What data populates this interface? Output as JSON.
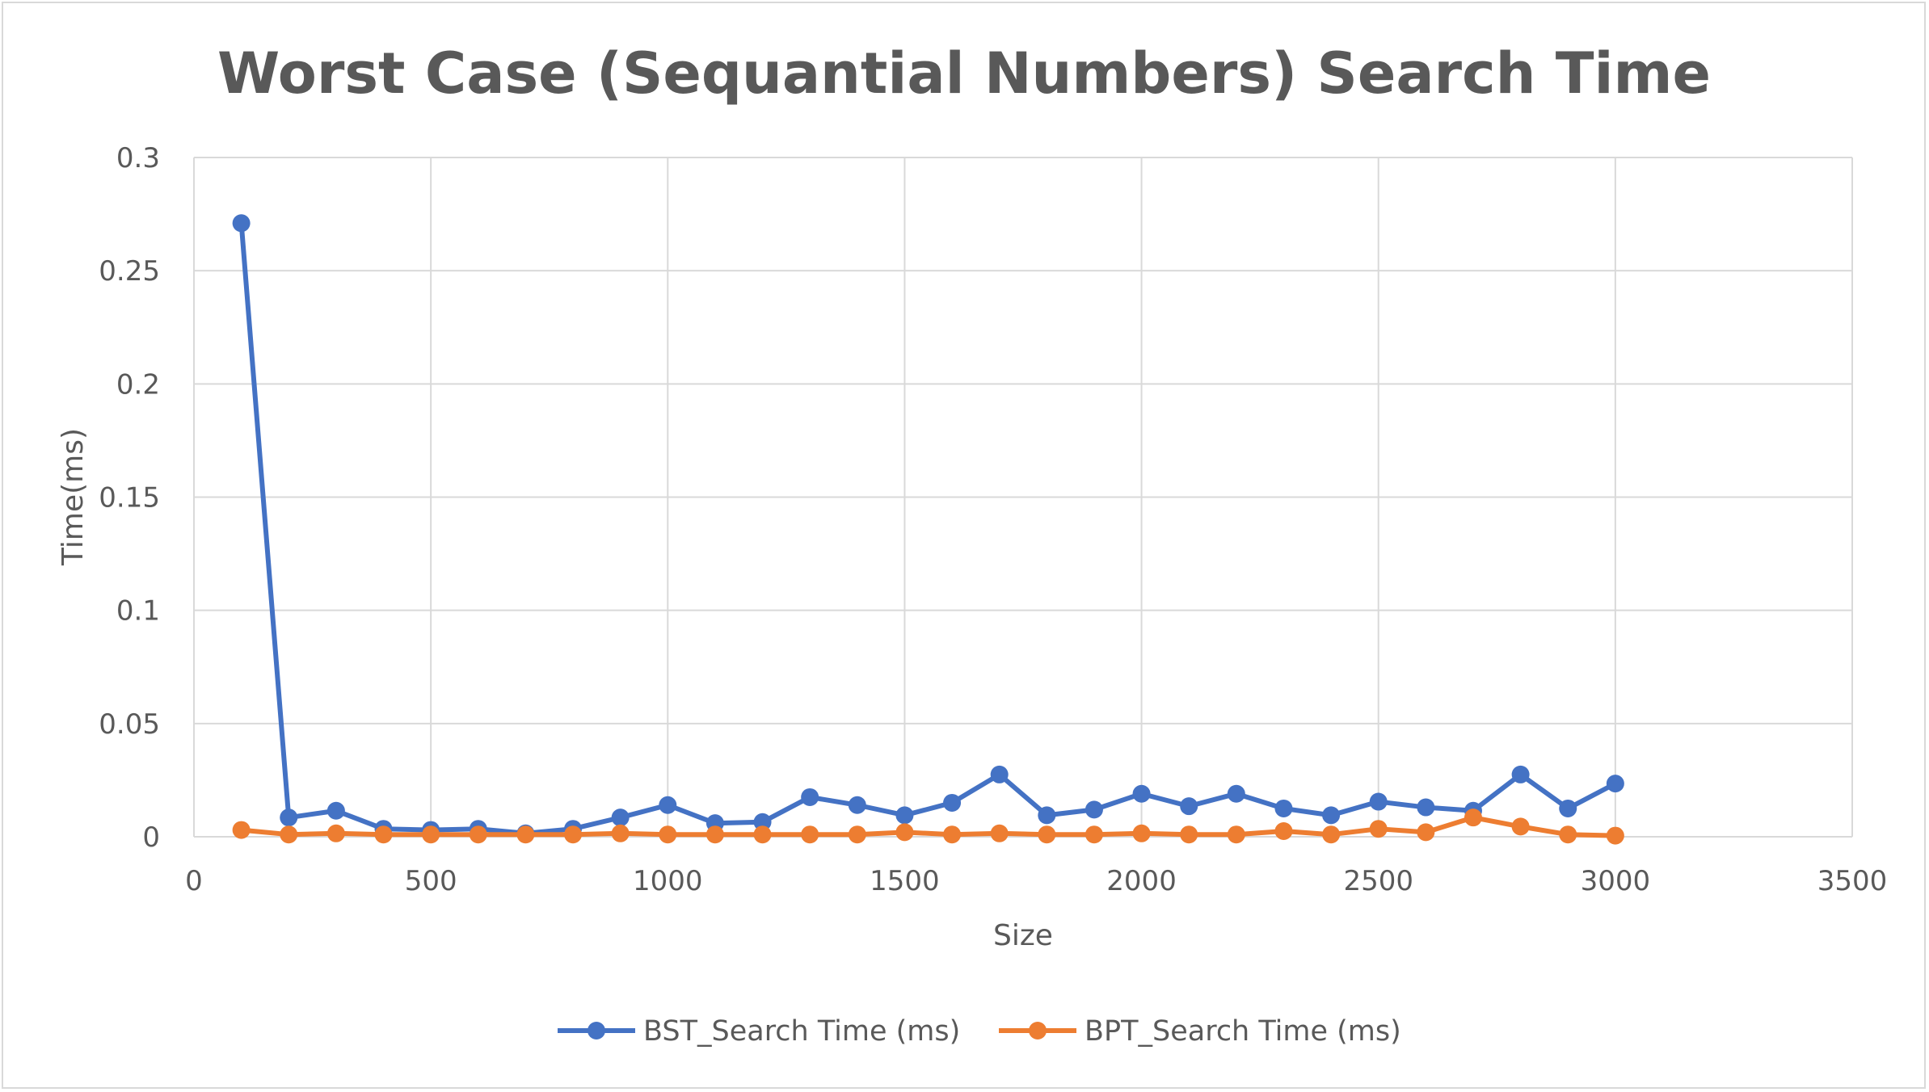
{
  "colors": {
    "bst": "#4472C4",
    "bpt": "#ED7D31",
    "grid": "#d9d9d9",
    "text": "#595959"
  },
  "chart_data": {
    "type": "line",
    "title": "Worst Case (Sequantial Numbers) Search Time",
    "xlabel": "Size",
    "ylabel": "Time(ms)",
    "xlim": [
      0,
      3500
    ],
    "ylim": [
      0,
      0.3
    ],
    "x_ticks": [
      "0",
      "500",
      "1000",
      "1500",
      "2000",
      "2500",
      "3000",
      "3500"
    ],
    "y_ticks": [
      "0",
      "0.05",
      "0.1",
      "0.15",
      "0.2",
      "0.25",
      "0.3"
    ],
    "grid": true,
    "legend_position": "bottom",
    "x": [
      100,
      200,
      300,
      400,
      500,
      600,
      700,
      800,
      900,
      1000,
      1100,
      1200,
      1300,
      1400,
      1500,
      1600,
      1700,
      1800,
      1900,
      2000,
      2100,
      2200,
      2300,
      2400,
      2500,
      2600,
      2700,
      2800,
      2900,
      3000
    ],
    "series": [
      {
        "name": "BST_Search Time (ms)",
        "values": [
          0.271,
          0.0085,
          0.0115,
          0.0035,
          0.003,
          0.0035,
          0.0015,
          0.0035,
          0.0085,
          0.014,
          0.006,
          0.0065,
          0.0175,
          0.014,
          0.0095,
          0.015,
          0.0275,
          0.0095,
          0.012,
          0.019,
          0.0135,
          0.019,
          0.0125,
          0.0095,
          0.0155,
          0.013,
          0.0115,
          0.0275,
          0.0125,
          0.0235
        ]
      },
      {
        "name": "BPT_Search Time (ms)",
        "values": [
          0.003,
          0.001,
          0.0015,
          0.001,
          0.001,
          0.001,
          0.001,
          0.001,
          0.0015,
          0.001,
          0.001,
          0.001,
          0.001,
          0.001,
          0.002,
          0.001,
          0.0015,
          0.001,
          0.001,
          0.0015,
          0.001,
          0.001,
          0.0025,
          0.001,
          0.0035,
          0.002,
          0.0085,
          0.0045,
          0.001,
          0.0005
        ]
      }
    ]
  }
}
